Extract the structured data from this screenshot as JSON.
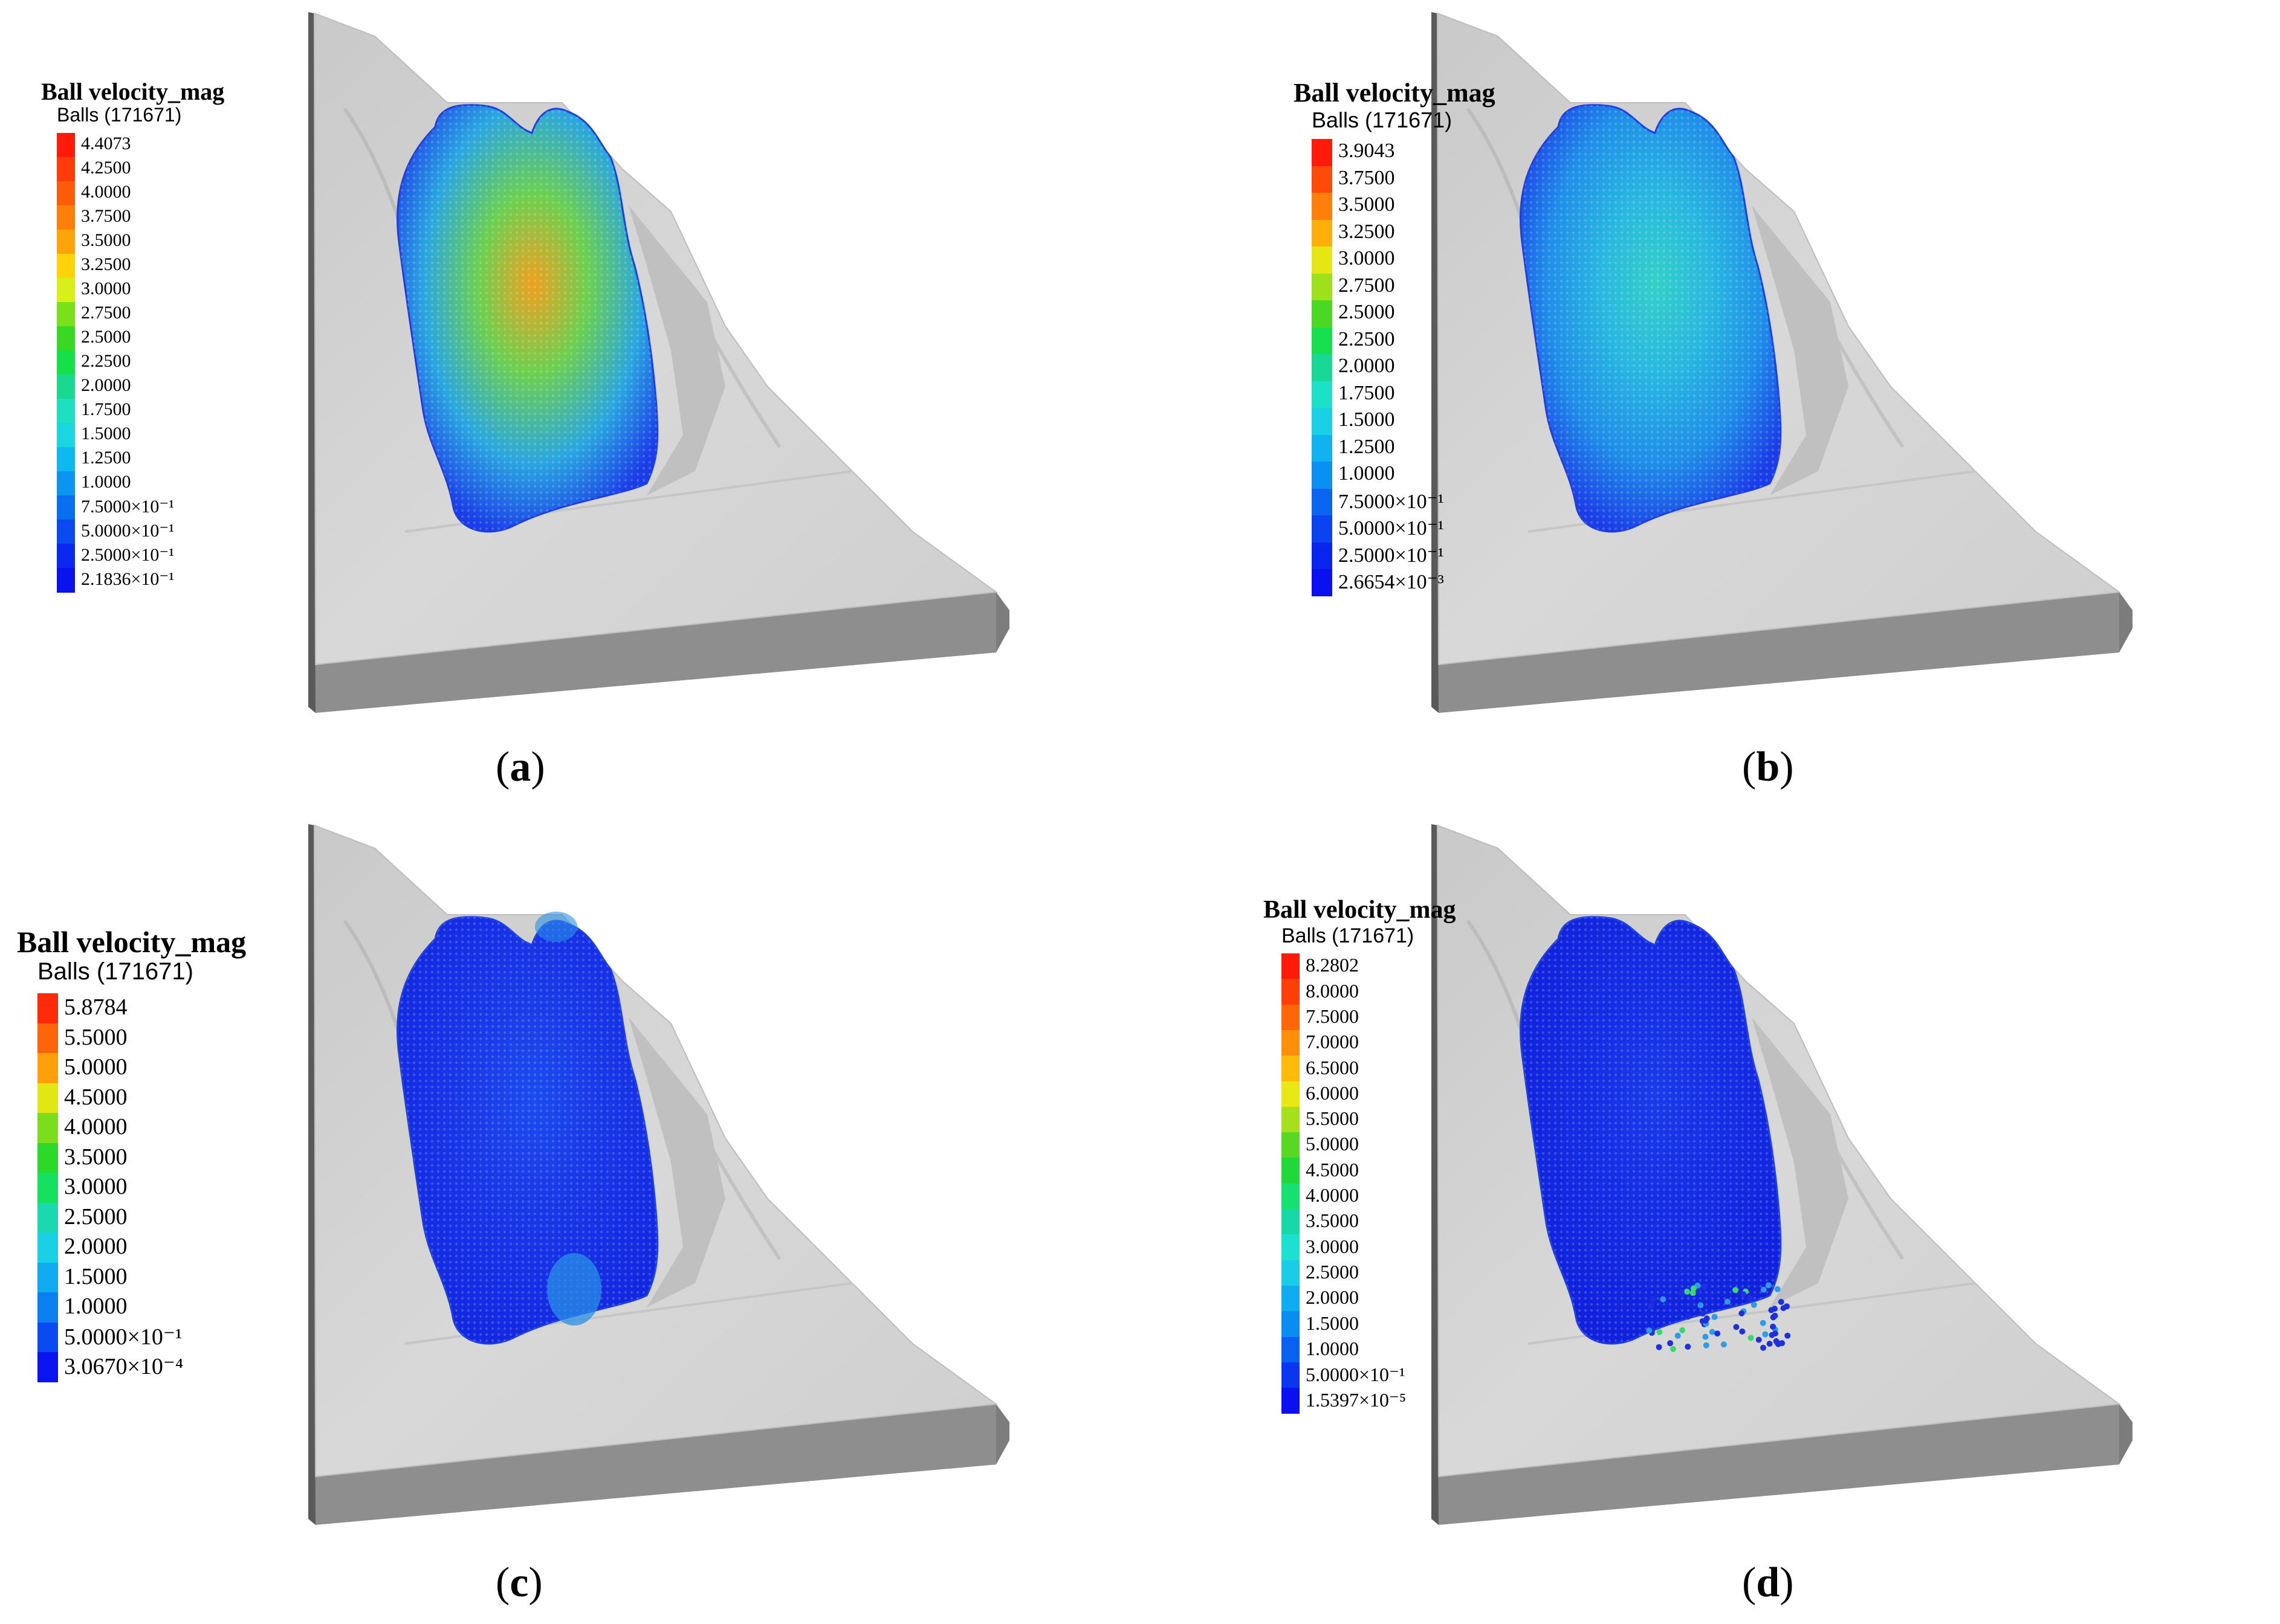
{
  "panels": [
    {
      "id": "a",
      "legend_title": "Ball velocity_mag",
      "legend_subtitle": "Balls (171671)",
      "ticks": [
        "4.4073",
        "4.2500",
        "4.0000",
        "3.7500",
        "3.5000",
        "3.2500",
        "3.0000",
        "2.7500",
        "2.5000",
        "2.2500",
        "2.0000",
        "1.7500",
        "1.5000",
        "1.2500",
        "1.0000",
        "7.5000×10⁻¹",
        "5.0000×10⁻¹",
        "2.5000×10⁻¹",
        "2.1836×10⁻¹"
      ],
      "colors": [
        "#ff1a0a",
        "#ff3b0a",
        "#ff5c0a",
        "#ff7f0a",
        "#ffa30a",
        "#ffd20a",
        "#d8ef1a",
        "#7be01c",
        "#39d824",
        "#15e04a",
        "#19d890",
        "#1ce0c0",
        "#1ad6e0",
        "#10b8f0",
        "#0a96f0",
        "#0a6ef0",
        "#0a4af0",
        "#0a28f0",
        "#0a12f0"
      ],
      "caption": "a",
      "heat": {
        "peak": "#f0a020",
        "mid": "#6cd050",
        "base": "#2aa6e0",
        "edge": "#1a3de8"
      }
    },
    {
      "id": "b",
      "legend_title": "Ball velocity_mag",
      "legend_subtitle": "Balls (171671)",
      "ticks": [
        "3.9043",
        "3.7500",
        "3.5000",
        "3.2500",
        "3.0000",
        "2.7500",
        "2.5000",
        "2.2500",
        "2.0000",
        "1.7500",
        "1.5000",
        "1.2500",
        "1.0000",
        "7.5000×10⁻¹",
        "5.0000×10⁻¹",
        "2.5000×10⁻¹",
        "2.6654×10⁻³"
      ],
      "colors": [
        "#ff1a0a",
        "#ff4a0a",
        "#ff7f0a",
        "#ffae0a",
        "#e6e614",
        "#9ee01c",
        "#4ad824",
        "#16e04e",
        "#19d896",
        "#1ce0c8",
        "#1ad0e6",
        "#10b2f0",
        "#0a90f0",
        "#0a66f0",
        "#0a44f0",
        "#0a24f0",
        "#0a10f0"
      ],
      "caption": "b",
      "heat": {
        "peak": "#34d0c8",
        "mid": "#28b8e0",
        "base": "#1f8ee8",
        "edge": "#1a3de8"
      }
    },
    {
      "id": "c",
      "legend_title": "Ball velocity_mag",
      "legend_subtitle": "Balls (171671)",
      "ticks": [
        "5.8784",
        "5.5000",
        "5.0000",
        "4.5000",
        "4.0000",
        "3.5000",
        "3.0000",
        "2.5000",
        "2.0000",
        "1.5000",
        "1.0000",
        "5.0000×10⁻¹",
        "3.0670×10⁻⁴"
      ],
      "colors": [
        "#ff2a0a",
        "#ff640a",
        "#ffa00a",
        "#e0e814",
        "#7ade1c",
        "#2cd828",
        "#16e060",
        "#1bd8b0",
        "#1ad0e4",
        "#10aaf0",
        "#0a80f0",
        "#0a4af0",
        "#0a14f0"
      ],
      "caption": "c",
      "heat": {
        "peak": "#1a4cf0",
        "mid": "#1a3ce8",
        "base": "#1530e6",
        "edge": "#1228e0"
      }
    },
    {
      "id": "d",
      "legend_title": "Ball velocity_mag",
      "legend_subtitle": "Balls (171671)",
      "ticks": [
        "8.2802",
        "8.0000",
        "7.5000",
        "7.0000",
        "6.5000",
        "6.0000",
        "5.5000",
        "5.0000",
        "4.5000",
        "4.0000",
        "3.5000",
        "3.0000",
        "2.5000",
        "2.0000",
        "1.5000",
        "1.0000",
        "5.0000×10⁻¹",
        "1.5397×10⁻⁵"
      ],
      "colors": [
        "#ff1a0a",
        "#ff3e0a",
        "#ff660a",
        "#ff8f0a",
        "#ffba0a",
        "#e8e814",
        "#a6e01c",
        "#58d824",
        "#20d838",
        "#16e070",
        "#19d8a8",
        "#1ce0d0",
        "#1acce6",
        "#10acf0",
        "#0a8cf0",
        "#0a60f0",
        "#0a36f0",
        "#0a10f0"
      ],
      "caption": "d",
      "heat": {
        "peak": "#1a3ce8",
        "mid": "#1530e6",
        "base": "#1228e0",
        "edge": "#1020dc"
      }
    }
  ]
}
